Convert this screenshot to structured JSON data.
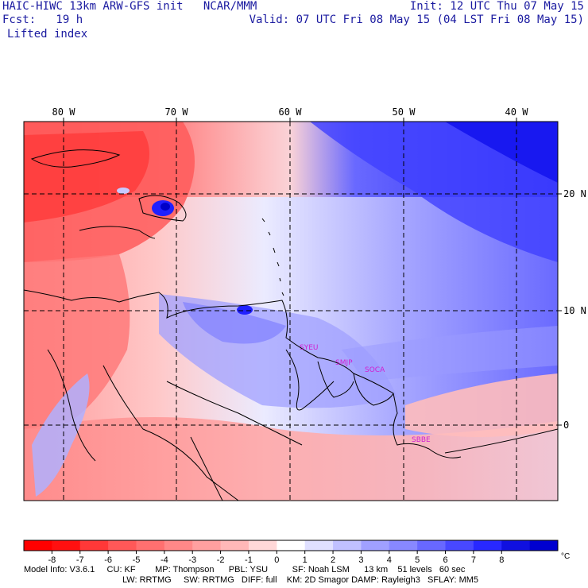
{
  "header": {
    "model": "HAIC-HIWC 13km ARW-GFS init   NCAR/MMM",
    "fcst": "Fcst:   19 h",
    "field": "Lifted index",
    "init": "Init: 12 UTC Thu 07 May 15",
    "valid": "Valid: 07 UTC Fri 08 May 15 (04 LST Fri 08 May 15)"
  },
  "map": {
    "lon_labels": [
      "80 W",
      "70 W",
      "60 W",
      "50 W",
      "40 W"
    ],
    "lat_labels": [
      "20 N",
      "10 N",
      "0"
    ],
    "stations": [
      {
        "name": "SYEU"
      },
      {
        "name": "SMJP"
      },
      {
        "name": "SOCA"
      },
      {
        "name": "SBBE"
      }
    ],
    "station_color": "#d020d0"
  },
  "colorbar": {
    "ticks": [
      "-8",
      "-7",
      "-6",
      "-5",
      "-4",
      "-3",
      "-2",
      "-1",
      "0",
      "1",
      "2",
      "3",
      "4",
      "5",
      "6",
      "7",
      "8"
    ],
    "unit": "°C",
    "colors": [
      "#ff1010",
      "#ff3838",
      "#ff5858",
      "#ff7070",
      "#ff8888",
      "#ffa0a0",
      "#ffb8b8",
      "#ffd8d8",
      "#ffffff",
      "#e0e0ff",
      "#c0c0ff",
      "#a0a0ff",
      "#8888ff",
      "#6868ff",
      "#4848ff",
      "#2828ff",
      "#0808e8"
    ]
  },
  "footer": {
    "line1": "Model Info: V3.6.1     CU: KF        MP: Thompson      PBL: YSU          SF: Noah LSM      13 km    51 levels   60 sec",
    "line2": "LW: RRTMG     SW: RRTMG   DIFF: full    KM: 2D Smagor DAMP: Rayleigh3   SFLAY: MM5"
  }
}
